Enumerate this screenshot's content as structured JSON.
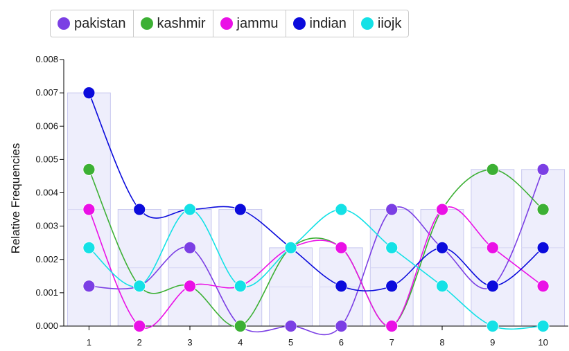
{
  "legend": {
    "items": [
      {
        "label": "pakistan",
        "color": "#7b3fe4"
      },
      {
        "label": "kashmir",
        "color": "#3cb034"
      },
      {
        "label": "jammu",
        "color": "#ea10e6"
      },
      {
        "label": "indian",
        "color": "#0b0bdc"
      },
      {
        "label": "iiojk",
        "color": "#14e1e6"
      }
    ]
  },
  "chart_data": {
    "type": "line",
    "categories": [
      "1",
      "2",
      "3",
      "4",
      "5",
      "6",
      "7",
      "8",
      "9",
      "10"
    ],
    "ylabel": "Relative Frequencies",
    "xlabel": "",
    "ylim": [
      0,
      0.008
    ],
    "yticks": [
      "0.000",
      "0.001",
      "0.002",
      "0.003",
      "0.004",
      "0.005",
      "0.006",
      "0.007",
      "0.008"
    ],
    "bars": [
      0.007,
      0.0035,
      0.0035,
      0.0035,
      0.00235,
      0.00235,
      0.0035,
      0.0035,
      0.0047,
      0.0047
    ],
    "series": [
      {
        "name": "pakistan",
        "color": "#7b3fe4",
        "values": [
          0.0012,
          0.0012,
          0.00235,
          0.0,
          0.0,
          0.0,
          0.0035,
          0.00235,
          0.0012,
          0.0047
        ]
      },
      {
        "name": "kashmir",
        "color": "#3cb034",
        "values": [
          0.0047,
          0.0012,
          0.0012,
          0.0,
          0.00235,
          0.00235,
          0.0,
          0.0035,
          0.0047,
          0.0035
        ]
      },
      {
        "name": "jammu",
        "color": "#ea10e6",
        "values": [
          0.0035,
          0.0,
          0.0012,
          0.0012,
          0.00235,
          0.00235,
          0.0,
          0.0035,
          0.00235,
          0.0012
        ]
      },
      {
        "name": "indian",
        "color": "#0b0bdc",
        "values": [
          0.007,
          0.0035,
          0.0035,
          0.0035,
          0.00235,
          0.0012,
          0.0012,
          0.00235,
          0.0012,
          0.00235
        ]
      },
      {
        "name": "iiojk",
        "color": "#14e1e6",
        "values": [
          0.00235,
          0.0012,
          0.0035,
          0.0012,
          0.00235,
          0.0035,
          0.00235,
          0.0012,
          0.0,
          0.0
        ]
      }
    ]
  }
}
